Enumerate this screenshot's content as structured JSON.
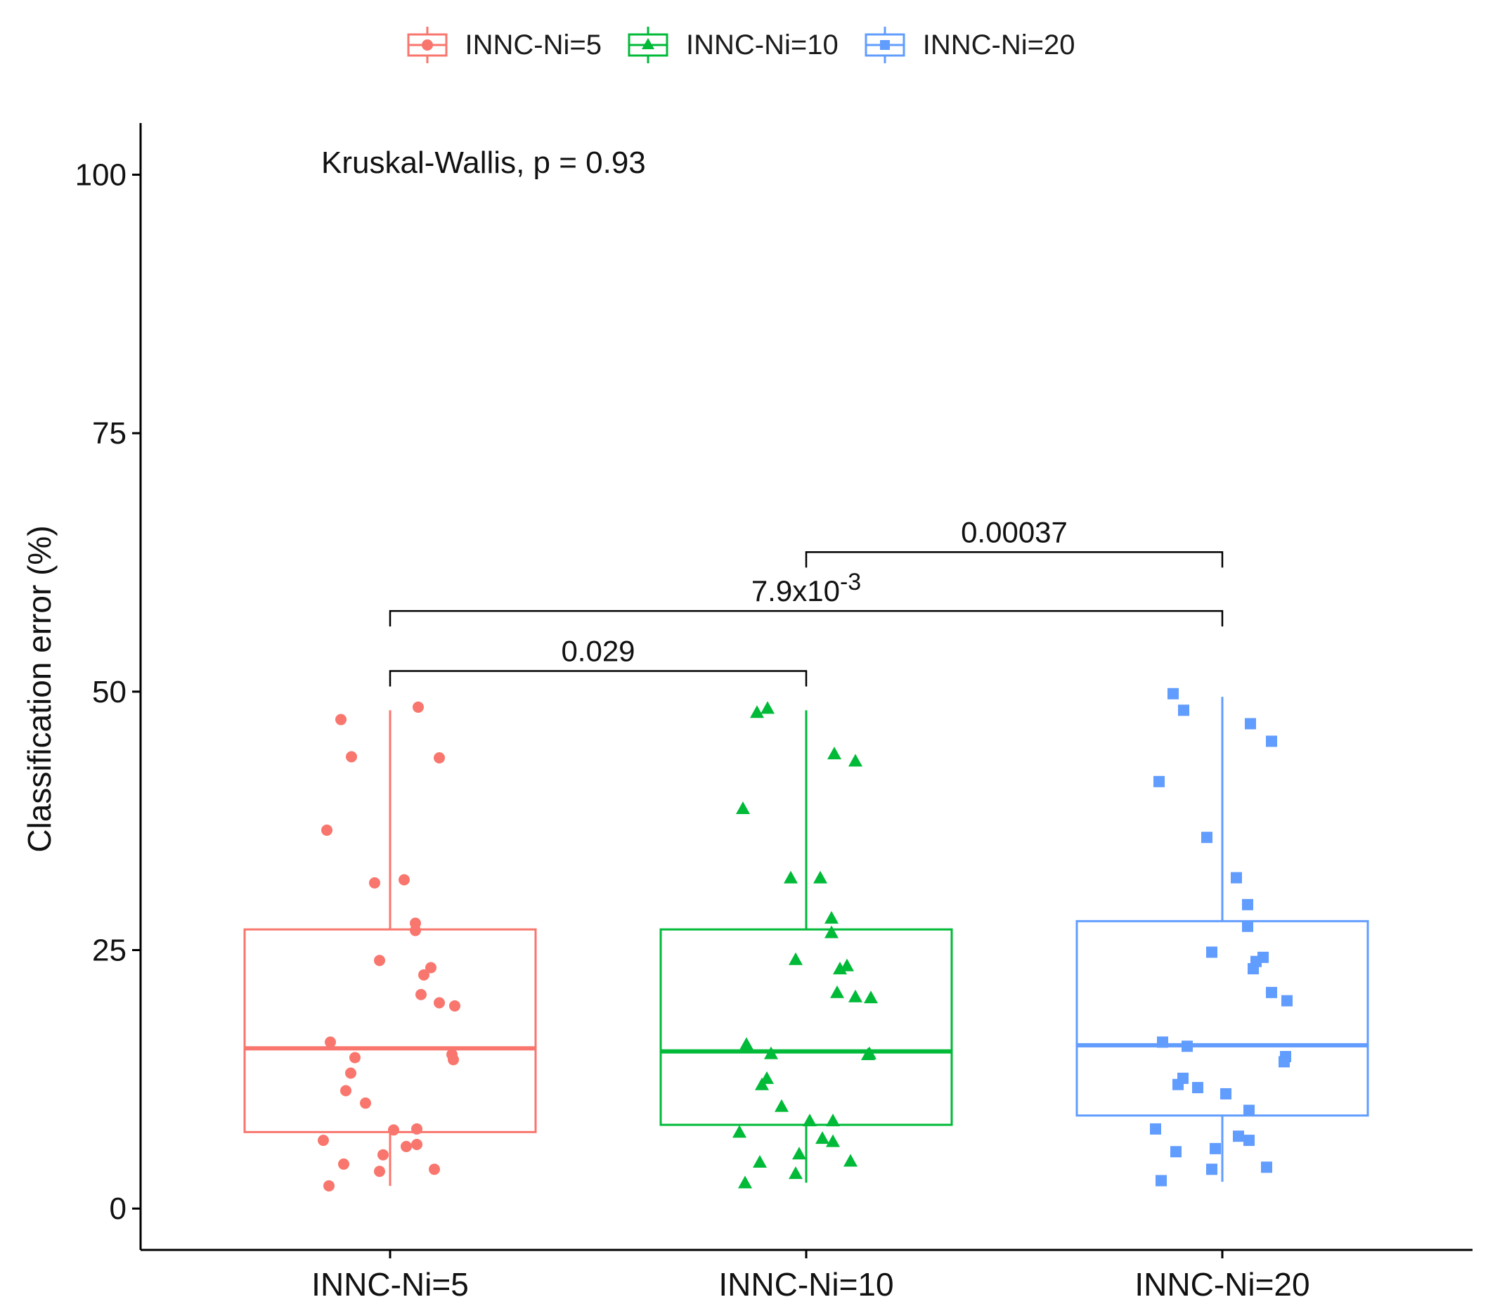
{
  "chart_data": {
    "type": "box",
    "title": "",
    "xlabel": "",
    "ylabel": "Classification error (%)",
    "ylim": [
      -4,
      105
    ],
    "yticks": [
      "0",
      "25",
      "50",
      "75",
      "100"
    ],
    "legend_position": "top",
    "kruskal_label": "Kruskal-Wallis, p = 0.93",
    "groups": [
      {
        "name": "INNC-Ni=5",
        "color": "#F8766D",
        "marker": "circle",
        "box": {
          "min": 2.2,
          "q1": 7.4,
          "median": 15.5,
          "q3": 27.0,
          "max": 48.2
        },
        "points": [
          47.3,
          43.7,
          48.5,
          43.6,
          36.6,
          31.5,
          31.8,
          27.6,
          26.9,
          24.0,
          23.3,
          22.6,
          20.7,
          19.9,
          19.6,
          16.1,
          14.6,
          14.4,
          14.9,
          13.1,
          11.4,
          10.2,
          7.6,
          7.7,
          6.6,
          6.0,
          6.2,
          5.2,
          4.3,
          3.8,
          3.6,
          2.2
        ]
      },
      {
        "name": "INNC-Ni=10",
        "color": "#00BA38",
        "marker": "triangle",
        "box": {
          "min": 2.5,
          "q1": 8.1,
          "median": 15.2,
          "q3": 27.0,
          "max": 48.2
        },
        "points": [
          48.0,
          48.4,
          44.0,
          43.3,
          38.7,
          32.0,
          32.0,
          28.1,
          26.7,
          24.1,
          23.5,
          23.2,
          20.9,
          20.5,
          20.4,
          15.9,
          15.0,
          15.0,
          14.9,
          12.6,
          12.0,
          9.9,
          8.5,
          8.5,
          7.4,
          6.8,
          6.5,
          5.3,
          4.5,
          4.6,
          3.4,
          2.5
        ]
      },
      {
        "name": "INNC-Ni=20",
        "color": "#619CFF",
        "marker": "square",
        "box": {
          "min": 2.6,
          "q1": 9.0,
          "median": 15.8,
          "q3": 27.8,
          "max": 49.5
        },
        "points": [
          49.8,
          48.2,
          46.9,
          45.2,
          41.3,
          35.9,
          32.0,
          29.4,
          27.3,
          24.8,
          24.3,
          23.9,
          23.2,
          20.9,
          20.1,
          16.1,
          15.7,
          14.7,
          14.2,
          12.6,
          12.0,
          11.7,
          11.1,
          9.5,
          7.7,
          7.0,
          6.6,
          5.8,
          5.5,
          4.0,
          3.8,
          2.7
        ]
      }
    ],
    "comparisons": [
      {
        "group1": "INNC-Ni=5",
        "group2": "INNC-Ni=10",
        "y": 52.0,
        "label": "0.029"
      },
      {
        "group1": "INNC-Ni=5",
        "group2": "INNC-Ni=20",
        "y": 57.8,
        "label_base": "7.9x10",
        "label_exp": "-3"
      },
      {
        "group1": "INNC-Ni=10",
        "group2": "INNC-Ni=20",
        "y": 63.5,
        "label": "0.00037"
      }
    ]
  }
}
